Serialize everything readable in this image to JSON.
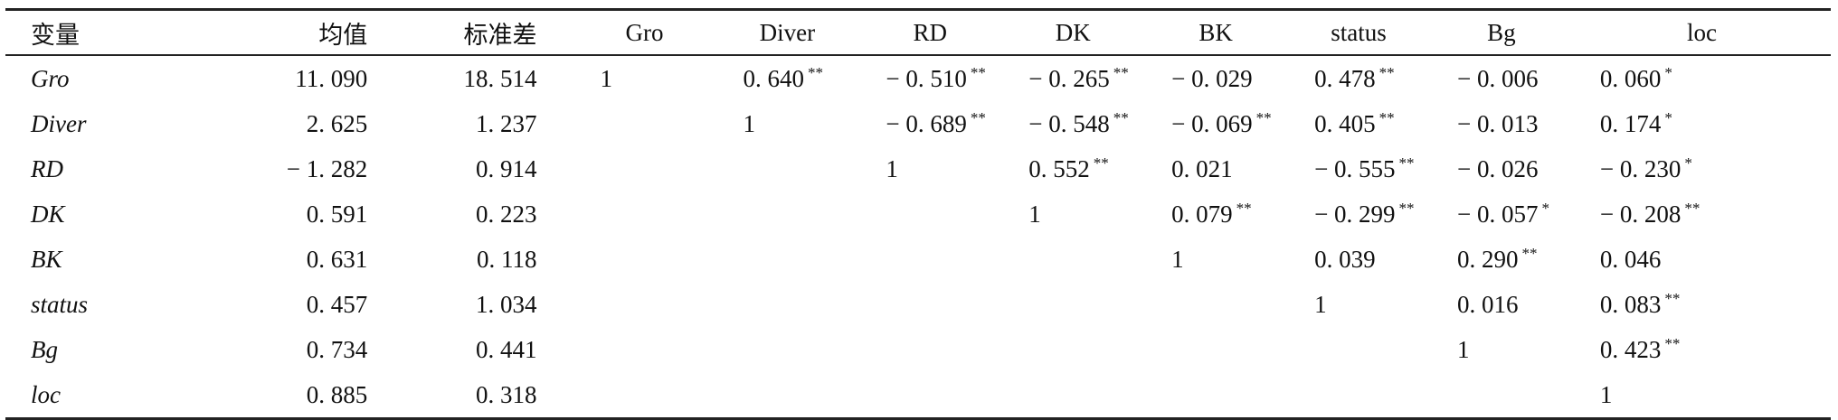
{
  "table": {
    "header": [
      "变量",
      "均值",
      "标准差",
      "Gro",
      "Diver",
      "RD",
      "DK",
      "BK",
      "status",
      "Bg",
      "loc"
    ],
    "rows": [
      [
        "Gro",
        "11. 090",
        "18. 514",
        "1",
        {
          "v": "0. 640",
          "sig": "**"
        },
        {
          "v": "− 0. 510",
          "sig": "**"
        },
        {
          "v": "− 0. 265",
          "sig": "**"
        },
        "− 0. 029",
        {
          "v": "0. 478",
          "sig": "**"
        },
        "− 0. 006",
        {
          "v": "0. 060",
          "sig": "*"
        }
      ],
      [
        "Diver",
        "2. 625",
        "1. 237",
        null,
        "1",
        {
          "v": "− 0. 689",
          "sig": "**"
        },
        {
          "v": "− 0. 548",
          "sig": "**"
        },
        {
          "v": "− 0. 069",
          "sig": "**"
        },
        {
          "v": "0. 405",
          "sig": "**"
        },
        "− 0. 013",
        {
          "v": "0. 174",
          "sig": "*"
        }
      ],
      [
        "RD",
        "− 1. 282",
        "0. 914",
        null,
        null,
        "1",
        {
          "v": "0. 552",
          "sig": "**"
        },
        "0. 021",
        {
          "v": "− 0. 555",
          "sig": "**"
        },
        "− 0. 026",
        {
          "v": "− 0. 230",
          "sig": "*"
        }
      ],
      [
        "DK",
        "0. 591",
        "0. 223",
        null,
        null,
        null,
        "1",
        {
          "v": "0. 079",
          "sig": "**"
        },
        {
          "v": "− 0. 299",
          "sig": "**"
        },
        {
          "v": "− 0. 057",
          "sig": "*"
        },
        {
          "v": "− 0. 208",
          "sig": "**"
        }
      ],
      [
        "BK",
        "0. 631",
        "0. 118",
        null,
        null,
        null,
        null,
        "1",
        "0. 039",
        {
          "v": "0. 290",
          "sig": "**"
        },
        "0. 046"
      ],
      [
        "status",
        "0. 457",
        "1. 034",
        null,
        null,
        null,
        null,
        null,
        "1",
        "0. 016",
        {
          "v": "0. 083",
          "sig": "**"
        }
      ],
      [
        "Bg",
        "0. 734",
        "0. 441",
        null,
        null,
        null,
        null,
        null,
        null,
        "1",
        {
          "v": "0. 423",
          "sig": "**"
        }
      ],
      [
        "loc",
        "0. 885",
        "0. 318",
        null,
        null,
        null,
        null,
        null,
        null,
        null,
        "1"
      ]
    ]
  }
}
